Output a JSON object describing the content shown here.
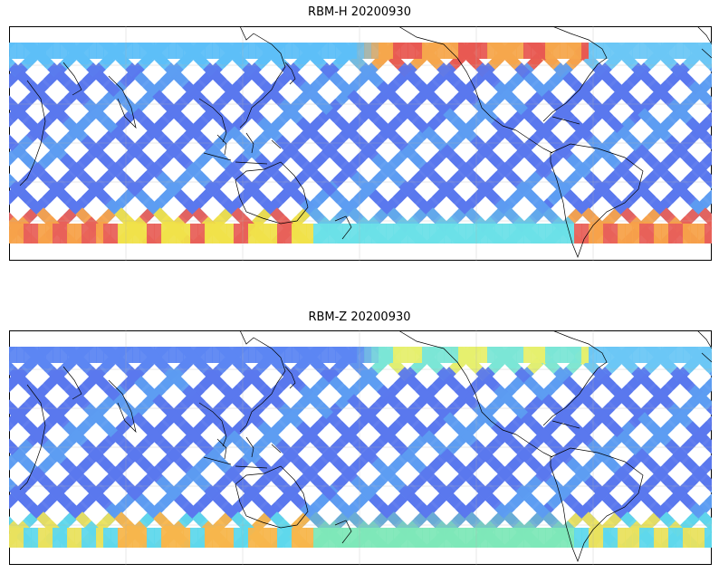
{
  "panels": [
    {
      "title": "RBM-H 20200930",
      "equator_color": "#5a78ee",
      "north_band": {
        "west_color": "#5dbff8",
        "central_color": "#f6a64c",
        "central_accent": "#e85a52",
        "east_color": "#6cc7f5"
      },
      "south_band": {
        "color": "#e8615a",
        "accent": "#f7a24a",
        "highlight": "#f0e14a",
        "transition": "#6ce0e8"
      }
    },
    {
      "title": "RBM-Z 20200930",
      "equator_color": "#5a78ee",
      "north_band": {
        "west_color": "#5c86f2",
        "central_color": "#7be6d6",
        "central_accent": "#e6ef6e",
        "east_color": "#6cc7f5"
      },
      "south_band": {
        "color": "#5fd8ec",
        "accent": "#e9e25e",
        "highlight": "#f7b64c",
        "transition": "#7ee8b8"
      }
    }
  ]
}
